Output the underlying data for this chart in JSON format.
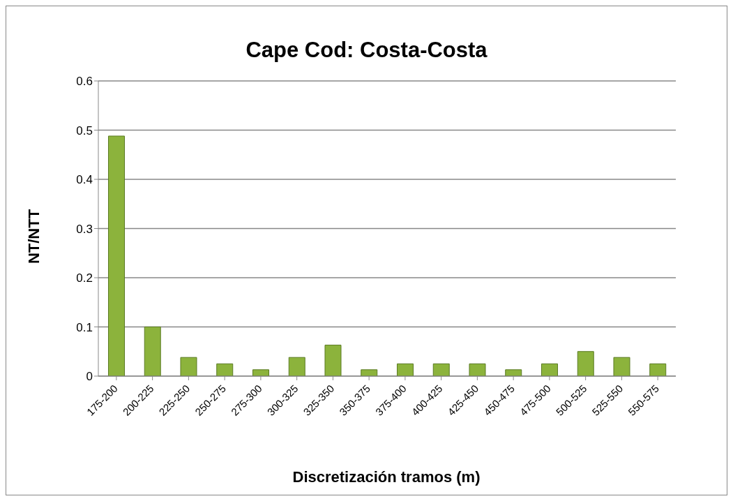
{
  "chart_data": {
    "type": "bar",
    "title": "Cape Cod: Costa-Costa",
    "xlabel": "Discretización tramos (m)",
    "ylabel": "NT/NTT",
    "categories": [
      "175-200",
      "200-225",
      "225-250",
      "250-275",
      "275-300",
      "300-325",
      "325-350",
      "350-375",
      "375-400",
      "400-425",
      "425-450",
      "450-475",
      "475-500",
      "500-525",
      "525-550",
      "550-575"
    ],
    "values": [
      0.488,
      0.1,
      0.038,
      0.025,
      0.013,
      0.038,
      0.063,
      0.013,
      0.025,
      0.025,
      0.025,
      0.013,
      0.025,
      0.05,
      0.038,
      0.025
    ],
    "color": "#8cb33c",
    "ylim": [
      0,
      0.6
    ],
    "yticks": [
      0,
      0.1,
      0.2,
      0.3,
      0.4,
      0.5,
      0.6
    ],
    "grid": "y",
    "legend": false
  }
}
